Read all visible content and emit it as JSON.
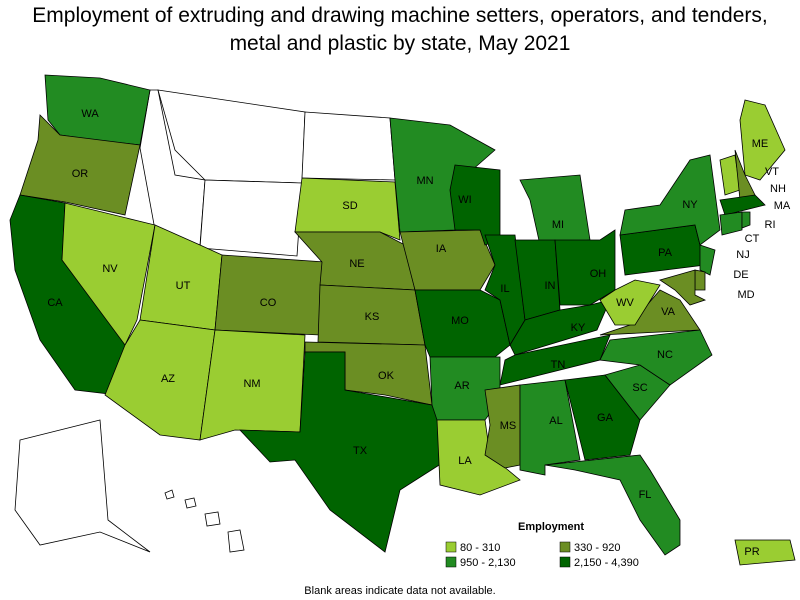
{
  "header": {
    "title": "Employment of extruding and drawing machine setters, operators, and tenders, metal and plastic by state, May 2021"
  },
  "states": [
    {
      "label": "WA",
      "color": "#228b22"
    },
    {
      "label": "OR",
      "color": "#6b8e23"
    },
    {
      "label": "CA",
      "color": "#006400"
    },
    {
      "label": "NV",
      "color": "#9acd32"
    },
    {
      "label": "UT",
      "color": "#9acd32"
    },
    {
      "label": "AZ",
      "color": "#9acd32"
    },
    {
      "label": "CO",
      "color": "#6b8e23"
    },
    {
      "label": "NM",
      "color": "#9acd32"
    },
    {
      "label": "SD",
      "color": "#9acd32"
    },
    {
      "label": "NE",
      "color": "#6b8e23"
    },
    {
      "label": "KS",
      "color": "#6b8e23"
    },
    {
      "label": "OK",
      "color": "#6b8e23"
    },
    {
      "label": "TX",
      "color": "#006400"
    },
    {
      "label": "MN",
      "color": "#228b22"
    },
    {
      "label": "IA",
      "color": "#6b8e23"
    },
    {
      "label": "MO",
      "color": "#006400"
    },
    {
      "label": "AR",
      "color": "#228b22"
    },
    {
      "label": "LA",
      "color": "#9acd32"
    },
    {
      "label": "WI",
      "color": "#006400"
    },
    {
      "label": "IL",
      "color": "#006400"
    },
    {
      "label": "MS",
      "color": "#6b8e23"
    },
    {
      "label": "MI",
      "color": "#228b22"
    },
    {
      "label": "IN",
      "color": "#006400"
    },
    {
      "label": "OH",
      "color": "#006400"
    },
    {
      "label": "KY",
      "color": "#006400"
    },
    {
      "label": "TN",
      "color": "#006400"
    },
    {
      "label": "AL",
      "color": "#228b22"
    },
    {
      "label": "GA",
      "color": "#006400"
    },
    {
      "label": "FL",
      "color": "#228b22"
    },
    {
      "label": "SC",
      "color": "#228b22"
    },
    {
      "label": "NC",
      "color": "#228b22"
    },
    {
      "label": "VA",
      "color": "#6b8e23"
    },
    {
      "label": "WV",
      "color": "#9acd32"
    },
    {
      "label": "PA",
      "color": "#006400"
    },
    {
      "label": "NY",
      "color": "#228b22"
    },
    {
      "label": "ME",
      "color": "#9acd32"
    },
    {
      "label": "VT",
      "color": "#9acd32"
    },
    {
      "label": "NH",
      "color": "#6b8e23"
    },
    {
      "label": "MA",
      "color": "#006400"
    },
    {
      "label": "CT",
      "color": "#228b22"
    },
    {
      "label": "RI",
      "color": "#228b22"
    },
    {
      "label": "NJ",
      "color": "#228b22"
    },
    {
      "label": "DE",
      "color": "#6b8e23"
    },
    {
      "label": "MD",
      "color": "#6b8e23"
    },
    {
      "label": "PR",
      "color": "#9acd32"
    }
  ],
  "legend": {
    "title": "Employment",
    "items": [
      {
        "label": "80 - 310",
        "color": "#9acd32"
      },
      {
        "label": "330 - 920",
        "color": "#6b8e23"
      },
      {
        "label": "950 - 2,130",
        "color": "#228b22"
      },
      {
        "label": "2,150 - 4,390",
        "color": "#006400"
      }
    ]
  },
  "footnote": "Blank areas indicate data not available."
}
